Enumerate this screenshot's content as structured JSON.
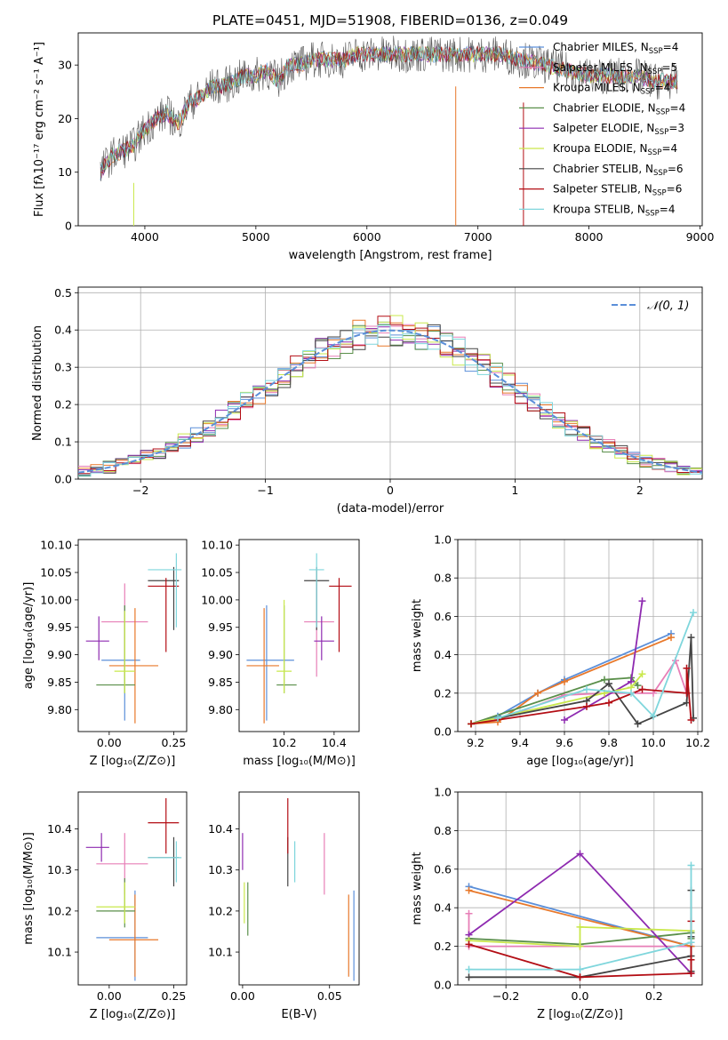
{
  "colors": {
    "chabrier_miles": "#5b8fd9",
    "salpeter_miles": "#e77fb7",
    "kroupa_miles": "#e8782a",
    "chabrier_elodie": "#5a8f4a",
    "salpeter_elodie": "#8e2ab0",
    "kroupa_elodie": "#c9e84b",
    "chabrier_stelib": "#444444",
    "salpeter_stelib": "#b30d14",
    "kroupa_stelib": "#7fd6dc",
    "normal": "#5b8fd9",
    "grid": "#b0b0b0"
  },
  "chart_data": [
    {
      "id": "spectrum",
      "type": "line",
      "title": "PLATE=0451, MJD=51908, FIBERID=0136, z=0.049",
      "xlabel": "wavelength [Angstrom, rest frame]",
      "ylabel": "Flux [fλ10⁻¹⁷ erg cm⁻² s⁻¹ A⁻¹]",
      "xlim": [
        3400,
        9020
      ],
      "ylim": [
        0,
        36
      ],
      "xticks": [
        "4000",
        "5000",
        "6000",
        "7000",
        "8000",
        "9000"
      ],
      "yticks": [
        "0",
        "10",
        "20",
        "30"
      ],
      "grid": false,
      "legend_position": "upper-right",
      "series": [
        {
          "key": "chabrier_miles",
          "name": "Chabrier MILES, N",
          "ssp": "=4"
        },
        {
          "key": "salpeter_miles",
          "name": "Salpeter MILES, N",
          "ssp": "=5"
        },
        {
          "key": "kroupa_miles",
          "name": "Kroupa MILES, N",
          "ssp": "=4"
        },
        {
          "key": "chabrier_elodie",
          "name": "Chabrier ELODIE, N",
          "ssp": "=4"
        },
        {
          "key": "salpeter_elodie",
          "name": "Salpeter ELODIE, N",
          "ssp": "=3"
        },
        {
          "key": "kroupa_elodie",
          "name": "Kroupa ELODIE, N",
          "ssp": "=4"
        },
        {
          "key": "chabrier_stelib",
          "name": "Chabrier STELIB, N",
          "ssp": "=6"
        },
        {
          "key": "salpeter_stelib",
          "name": "Salpeter STELIB, N",
          "ssp": "=6"
        },
        {
          "key": "kroupa_stelib",
          "name": "Kroupa STELIB, N",
          "ssp": "=4"
        }
      ],
      "ssp_subscript": "SSP",
      "envelope": {
        "x": [
          3600,
          3700,
          3800,
          3900,
          4000,
          4100,
          4200,
          4300,
          4400,
          4500,
          4600,
          4700,
          4800,
          4900,
          5000,
          5100,
          5200,
          5300,
          5400,
          5500,
          5600,
          5700,
          5800,
          5900,
          6000,
          6200,
          6400,
          6600,
          6800,
          7000,
          7200,
          7400,
          7600,
          7800,
          8000,
          8200,
          8400,
          8600,
          8800
        ],
        "y": [
          10,
          13,
          14,
          15,
          18,
          20,
          21,
          19,
          23,
          24,
          26,
          26,
          27,
          28,
          28,
          29,
          27,
          30,
          30,
          31,
          31,
          31,
          31,
          32,
          32,
          32,
          32,
          32,
          32,
          32,
          32,
          31,
          30,
          29,
          28,
          28,
          28,
          27,
          27
        ]
      }
    },
    {
      "id": "residuals",
      "type": "bar",
      "xlabel": "(data-model)/error",
      "ylabel": "Normed distribution",
      "xlim": [
        -2.5,
        2.5
      ],
      "ylim": [
        0,
        0.515
      ],
      "xticks": [
        "−2",
        "−1",
        "0",
        "1",
        "2"
      ],
      "yticks": [
        "0.0",
        "0.1",
        "0.2",
        "0.3",
        "0.4",
        "0.5"
      ],
      "grid": true,
      "legend_position": "upper-right",
      "legend_label": "𝒩(0, 1)",
      "bin_width": 0.1
    },
    {
      "id": "age_vs_Z",
      "type": "scatter",
      "xlabel": "Z [log₁₀(Z/Z⊙)]",
      "ylabel": "age  [log₁₀(age/yr)]",
      "xlim": [
        -0.12,
        0.3
      ],
      "ylim": [
        9.76,
        10.11
      ],
      "xticks": [
        "0.00",
        "0.25"
      ],
      "yticks": [
        "9.80",
        "9.85",
        "9.90",
        "9.95",
        "10.00",
        "10.05",
        "10.10"
      ],
      "points": [
        {
          "key": "chabrier_miles",
          "x": 0.06,
          "xe": [
            -0.03,
            0.12
          ],
          "y": 9.89,
          "ye": [
            9.78,
            9.99
          ]
        },
        {
          "key": "salpeter_miles",
          "x": 0.06,
          "xe": [
            -0.03,
            0.15
          ],
          "y": 9.96,
          "ye": [
            9.86,
            10.03
          ]
        },
        {
          "key": "kroupa_miles",
          "x": 0.1,
          "xe": [
            0.0,
            0.19
          ],
          "y": 9.88,
          "ye": [
            9.775,
            9.985
          ]
        },
        {
          "key": "chabrier_elodie",
          "x": 0.06,
          "xe": [
            -0.05,
            0.1
          ],
          "y": 9.845,
          "ye": [
            9.83,
            9.99
          ]
        },
        {
          "key": "salpeter_elodie",
          "x": -0.04,
          "xe": [
            -0.09,
            0.0
          ],
          "y": 9.925,
          "ye": [
            9.89,
            9.97
          ]
        },
        {
          "key": "kroupa_elodie",
          "x": 0.06,
          "xe": [
            0.02,
            0.1
          ],
          "y": 9.87,
          "ye": [
            9.83,
            9.98
          ]
        },
        {
          "key": "chabrier_stelib",
          "x": 0.25,
          "xe": [
            0.15,
            0.27
          ],
          "y": 10.035,
          "ye": [
            9.945,
            10.06
          ]
        },
        {
          "key": "salpeter_stelib",
          "x": 0.22,
          "xe": [
            0.15,
            0.27
          ],
          "y": 10.025,
          "ye": [
            9.905,
            10.04
          ]
        },
        {
          "key": "kroupa_stelib",
          "x": 0.26,
          "xe": [
            0.15,
            0.28
          ],
          "y": 10.055,
          "ye": [
            9.95,
            10.085
          ]
        }
      ]
    },
    {
      "id": "age_vs_mass",
      "type": "scatter",
      "xlabel": "mass [log₁₀(M/M⊙)]",
      "ylabel": "",
      "xlim": [
        10.02,
        10.5
      ],
      "ylim": [
        9.76,
        10.11
      ],
      "xticks": [
        "10.2",
        "10.4"
      ],
      "yticks": [
        "9.80",
        "9.85",
        "9.90",
        "9.95",
        "10.00",
        "10.05",
        "10.10"
      ],
      "points": [
        {
          "key": "chabrier_miles",
          "x": 10.13,
          "xe": [
            10.05,
            10.24
          ],
          "y": 9.89,
          "ye": [
            9.78,
            9.99
          ]
        },
        {
          "key": "salpeter_miles",
          "x": 10.33,
          "xe": [
            10.28,
            10.4
          ],
          "y": 9.96,
          "ye": [
            9.86,
            10.03
          ]
        },
        {
          "key": "kroupa_miles",
          "x": 10.12,
          "xe": [
            10.05,
            10.18
          ],
          "y": 9.88,
          "ye": [
            9.775,
            9.985
          ]
        },
        {
          "key": "chabrier_elodie",
          "x": 10.2,
          "xe": [
            10.17,
            10.25
          ],
          "y": 9.845,
          "ye": [
            9.83,
            9.99
          ]
        },
        {
          "key": "salpeter_elodie",
          "x": 10.35,
          "xe": [
            10.32,
            10.4
          ],
          "y": 9.925,
          "ye": [
            9.89,
            9.97
          ]
        },
        {
          "key": "kroupa_elodie",
          "x": 10.2,
          "xe": [
            10.17,
            10.23
          ],
          "y": 9.87,
          "ye": [
            9.83,
            10.0
          ]
        },
        {
          "key": "chabrier_stelib",
          "x": 10.33,
          "xe": [
            10.28,
            10.38
          ],
          "y": 10.035,
          "ye": [
            9.945,
            10.06
          ]
        },
        {
          "key": "salpeter_stelib",
          "x": 10.42,
          "xe": [
            10.38,
            10.47
          ],
          "y": 10.025,
          "ye": [
            9.905,
            10.04
          ]
        },
        {
          "key": "kroupa_stelib",
          "x": 10.33,
          "xe": [
            10.3,
            10.36
          ],
          "y": 10.055,
          "ye": [
            9.95,
            10.085
          ]
        }
      ]
    },
    {
      "id": "massweight_vs_age",
      "type": "line",
      "xlabel": "age  [log₁₀(age/yr)]",
      "ylabel": "mass weight",
      "xlim": [
        9.12,
        10.22
      ],
      "ylim": [
        0,
        1.0
      ],
      "xticks": [
        "9.2",
        "9.4",
        "9.6",
        "9.8",
        "10.0",
        "10.2"
      ],
      "yticks": [
        "0.0",
        "0.2",
        "0.4",
        "0.6",
        "0.8",
        "1.0"
      ],
      "grid": true,
      "series": [
        {
          "key": "chabrier_miles",
          "x": [
            9.18,
            9.3,
            9.48,
            9.6,
            10.08
          ],
          "y": [
            0.04,
            0.08,
            0.2,
            0.27,
            0.51
          ]
        },
        {
          "key": "salpeter_miles",
          "x": [
            9.3,
            9.6,
            9.78,
            10.0,
            10.1,
            10.15
          ],
          "y": [
            0.06,
            0.19,
            0.2,
            0.2,
            0.37,
            0.2
          ]
        },
        {
          "key": "kroupa_miles",
          "x": [
            9.18,
            9.3,
            9.48,
            9.6,
            10.08
          ],
          "y": [
            0.04,
            0.05,
            0.2,
            0.26,
            0.49
          ]
        },
        {
          "key": "chabrier_elodie",
          "x": [
            9.18,
            9.78,
            9.9,
            9.93
          ],
          "y": [
            0.04,
            0.27,
            0.28,
            0.24
          ]
        },
        {
          "key": "salpeter_elodie",
          "x": [
            9.6,
            9.9,
            9.95
          ],
          "y": [
            0.06,
            0.26,
            0.68
          ]
        },
        {
          "key": "kroupa_elodie",
          "x": [
            9.18,
            9.78,
            9.9,
            9.95
          ],
          "y": [
            0.04,
            0.2,
            0.23,
            0.3
          ]
        },
        {
          "key": "chabrier_stelib",
          "x": [
            9.3,
            9.7,
            9.8,
            9.93,
            10.15,
            10.17,
            10.18
          ],
          "y": [
            0.07,
            0.16,
            0.25,
            0.04,
            0.15,
            0.49,
            0.07
          ]
        },
        {
          "key": "salpeter_stelib",
          "x": [
            9.18,
            9.7,
            9.8,
            9.95,
            10.15,
            10.15,
            10.17
          ],
          "y": [
            0.04,
            0.13,
            0.15,
            0.22,
            0.2,
            0.33,
            0.06
          ]
        },
        {
          "key": "kroupa_stelib",
          "x": [
            9.3,
            9.7,
            9.9,
            10.0,
            10.18
          ],
          "y": [
            0.07,
            0.22,
            0.2,
            0.08,
            0.62
          ]
        }
      ]
    },
    {
      "id": "mass_vs_Z",
      "type": "scatter",
      "xlabel": "Z [log₁₀(Z/Z⊙)]",
      "ylabel": "mass [log₁₀(M/M⊙)]",
      "xlim": [
        -0.12,
        0.3
      ],
      "ylim": [
        10.02,
        10.49
      ],
      "xticks": [
        "0.00",
        "0.25"
      ],
      "yticks": [
        "10.1",
        "10.2",
        "10.3",
        "10.4"
      ],
      "points": [
        {
          "key": "chabrier_miles",
          "x": 0.1,
          "xe": [
            -0.05,
            0.15
          ],
          "y": 10.135,
          "ye": [
            10.03,
            10.25
          ]
        },
        {
          "key": "salpeter_miles",
          "x": 0.06,
          "xe": [
            -0.05,
            0.15
          ],
          "y": 10.315,
          "ye": [
            10.24,
            10.39
          ]
        },
        {
          "key": "kroupa_miles",
          "x": 0.1,
          "xe": [
            0.0,
            0.19
          ],
          "y": 10.13,
          "ye": [
            10.04,
            10.24
          ]
        },
        {
          "key": "chabrier_elodie",
          "x": 0.06,
          "xe": [
            -0.05,
            0.1
          ],
          "y": 10.2,
          "ye": [
            10.16,
            10.28
          ]
        },
        {
          "key": "salpeter_elodie",
          "x": -0.03,
          "xe": [
            -0.09,
            0.0
          ],
          "y": 10.355,
          "ye": [
            10.32,
            10.39
          ]
        },
        {
          "key": "kroupa_elodie",
          "x": 0.06,
          "xe": [
            -0.05,
            0.1
          ],
          "y": 10.21,
          "ye": [
            10.17,
            10.27
          ]
        },
        {
          "key": "chabrier_stelib",
          "x": 0.25,
          "xe": [
            0.15,
            0.27
          ],
          "y": 10.33,
          "ye": [
            10.26,
            10.38
          ]
        },
        {
          "key": "salpeter_stelib",
          "x": 0.22,
          "xe": [
            0.15,
            0.27
          ],
          "y": 10.415,
          "ye": [
            10.34,
            10.475
          ]
        },
        {
          "key": "kroupa_stelib",
          "x": 0.26,
          "xe": [
            0.15,
            0.28
          ],
          "y": 10.33,
          "ye": [
            10.27,
            10.37
          ]
        }
      ]
    },
    {
      "id": "mass_vs_ebv",
      "type": "scatter",
      "xlabel": "E(B-V)",
      "ylabel": "",
      "xlim": [
        -0.002,
        0.067
      ],
      "ylim": [
        10.02,
        10.49
      ],
      "xticks": [
        "0.00",
        "0.05"
      ],
      "yticks": [
        "10.1",
        "10.2",
        "10.3",
        "10.4"
      ],
      "points": [
        {
          "key": "chabrier_miles",
          "x": 0.064,
          "ye": [
            10.03,
            10.25
          ]
        },
        {
          "key": "salpeter_miles",
          "x": 0.047,
          "ye": [
            10.24,
            10.39
          ]
        },
        {
          "key": "kroupa_miles",
          "x": 0.061,
          "ye": [
            10.04,
            10.24
          ]
        },
        {
          "key": "chabrier_elodie",
          "x": 0.003,
          "ye": [
            10.14,
            10.27
          ]
        },
        {
          "key": "salpeter_elodie",
          "x": 0.0,
          "ye": [
            10.3,
            10.39
          ]
        },
        {
          "key": "kroupa_elodie",
          "x": 0.001,
          "ye": [
            10.17,
            10.27
          ]
        },
        {
          "key": "chabrier_stelib",
          "x": 0.026,
          "ye": [
            10.26,
            10.38
          ]
        },
        {
          "key": "salpeter_stelib",
          "x": 0.026,
          "ye": [
            10.34,
            10.475
          ]
        },
        {
          "key": "kroupa_stelib",
          "x": 0.03,
          "ye": [
            10.27,
            10.37
          ]
        }
      ]
    },
    {
      "id": "massweight_vs_Z",
      "type": "line",
      "xlabel": "Z [log₁₀(Z/Z⊙)]",
      "ylabel": "mass weight",
      "xlim": [
        -0.33,
        0.33
      ],
      "ylim": [
        0,
        1.0
      ],
      "xticks": [
        "−0.2",
        "0.0",
        "0.2"
      ],
      "yticks": [
        "0.0",
        "0.2",
        "0.4",
        "0.6",
        "0.8",
        "1.0"
      ],
      "grid": true,
      "series": [
        {
          "key": "chabrier_miles",
          "x": [
            -0.3,
            0.3
          ],
          "y": [
            0.51,
            0.2
          ]
        },
        {
          "key": "salpeter_miles",
          "x": [
            -0.3,
            -0.3,
            0.0,
            0.3
          ],
          "y": [
            0.37,
            0.2,
            0.2,
            0.2
          ]
        },
        {
          "key": "kroupa_miles",
          "x": [
            -0.3,
            0.3
          ],
          "y": [
            0.49,
            0.2
          ]
        },
        {
          "key": "chabrier_elodie",
          "x": [
            -0.3,
            0.0,
            0.3,
            0.3
          ],
          "y": [
            0.24,
            0.21,
            0.27,
            0.24
          ]
        },
        {
          "key": "salpeter_elodie",
          "x": [
            -0.3,
            0.0,
            0.3
          ],
          "y": [
            0.26,
            0.68,
            0.06
          ]
        },
        {
          "key": "kroupa_elodie",
          "x": [
            -0.3,
            0.0,
            0.0,
            0.3
          ],
          "y": [
            0.23,
            0.2,
            0.3,
            0.28
          ]
        },
        {
          "key": "chabrier_stelib",
          "x": [
            -0.3,
            0.0,
            0.3,
            0.3,
            0.3,
            0.3
          ],
          "y": [
            0.04,
            0.04,
            0.15,
            0.49,
            0.07,
            0.25
          ]
        },
        {
          "key": "salpeter_stelib",
          "x": [
            -0.3,
            0.0,
            0.3,
            0.3,
            0.3
          ],
          "y": [
            0.21,
            0.04,
            0.06,
            0.33,
            0.13
          ]
        },
        {
          "key": "kroupa_stelib",
          "x": [
            -0.3,
            0.0,
            0.3,
            0.3
          ],
          "y": [
            0.08,
            0.08,
            0.22,
            0.62
          ]
        }
      ]
    }
  ]
}
